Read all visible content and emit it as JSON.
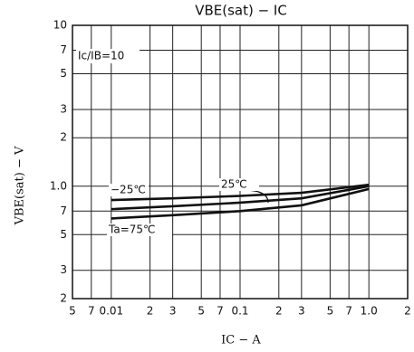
{
  "chart_data": {
    "type": "line",
    "title": "VBE(sat) − IC",
    "x_label": "IC − A",
    "y_label": "VBE(sat) − V",
    "annotation": "Ic/IB=10",
    "log_x": true,
    "log_y": true,
    "grid": true,
    "xlim": [
      0.005,
      2
    ],
    "ylim": [
      0.2,
      10
    ],
    "xticks": [
      {
        "value": 0.005,
        "label": "5"
      },
      {
        "value": 0.007,
        "label": "7"
      },
      0.01,
      {
        "value": 0.02,
        "label": "2"
      },
      {
        "value": 0.03,
        "label": "3"
      },
      {
        "value": 0.05,
        "label": "5"
      },
      {
        "value": 0.07,
        "label": "7"
      },
      0.1,
      {
        "value": 0.2,
        "label": "2"
      },
      {
        "value": 0.3,
        "label": "3"
      },
      {
        "value": 0.5,
        "label": "5"
      },
      {
        "value": 0.7,
        "label": "7"
      },
      {
        "value": 1,
        "label": "1.0"
      },
      2
    ],
    "yticks": [
      {
        "value": 0.2,
        "label": "2"
      },
      {
        "value": 0.3,
        "label": "3"
      },
      {
        "value": 0.5,
        "label": "5"
      },
      {
        "value": 0.7,
        "label": "7"
      },
      {
        "value": 1,
        "label": "1.0"
      },
      2,
      3,
      5,
      7,
      10
    ],
    "x": [
      0.01,
      0.03,
      0.1,
      0.3,
      1.0
    ],
    "series": [
      {
        "name": "−25℃",
        "color": "#111111",
        "values": [
          0.82,
          0.84,
          0.87,
          0.91,
          1.02
        ]
      },
      {
        "name": "25℃",
        "color": "#111111",
        "values": [
          0.72,
          0.75,
          0.79,
          0.84,
          1.0
        ]
      },
      {
        "name": "Ta=75℃",
        "color": "#111111",
        "values": [
          0.63,
          0.66,
          0.7,
          0.76,
          0.96
        ]
      }
    ]
  }
}
